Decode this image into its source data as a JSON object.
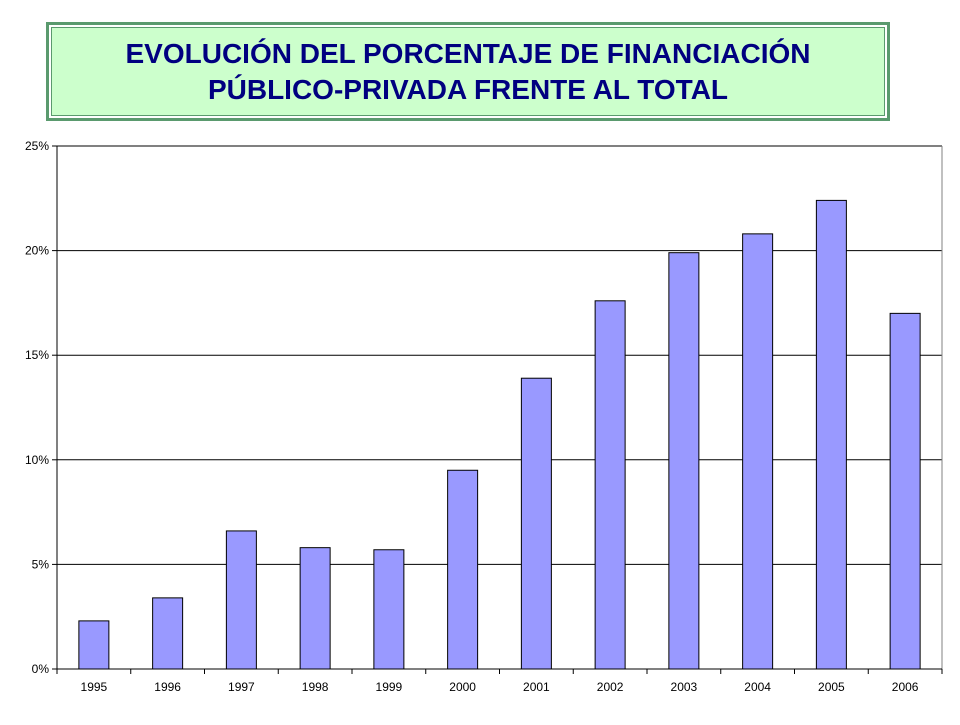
{
  "header": {
    "title_line1": "EVOLUCIÓN DEL PORCENTAJE DE FINANCIACIÓN",
    "title_line2": "PÚBLICO-PRIVADA FRENTE AL TOTAL"
  },
  "chart_data": {
    "type": "bar",
    "title": "EVOLUCIÓN DEL PORCENTAJE DE FINANCIACIÓN PÚBLICO-PRIVADA FRENTE AL TOTAL",
    "categories": [
      "1995",
      "1996",
      "1997",
      "1998",
      "1999",
      "2000",
      "2001",
      "2002",
      "2003",
      "2004",
      "2005",
      "2006"
    ],
    "values": [
      2.3,
      3.4,
      6.6,
      5.8,
      5.7,
      9.5,
      13.9,
      17.6,
      19.9,
      20.8,
      22.4,
      17.0
    ],
    "ylim": [
      0,
      25
    ],
    "y_ticks": [
      0,
      5,
      10,
      15,
      20,
      25
    ],
    "y_tick_labels": [
      "0%",
      "5%",
      "10%",
      "15%",
      "20%",
      "25%"
    ],
    "grid": true,
    "legend": "none",
    "colors": {
      "bar_fill": "#9999ff",
      "bar_stroke": "#000000",
      "grid": "#000000"
    }
  }
}
